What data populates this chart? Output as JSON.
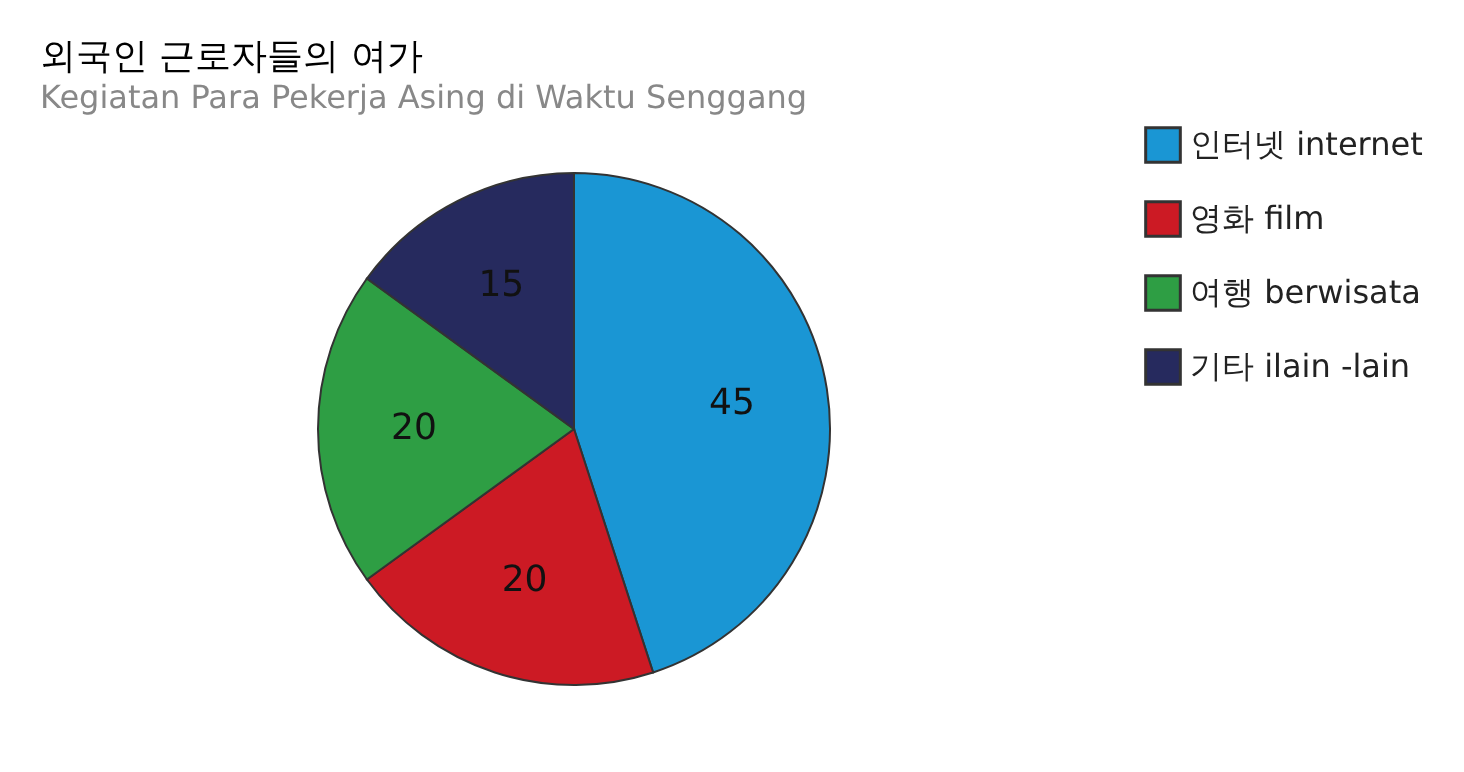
{
  "chart_data": {
    "type": "pie",
    "title": "외국인 근로자들의 여가",
    "subtitle": "Kegiatan Para Pekerja Asing di Waktu Senggang",
    "categories": [
      "인터넷 internet",
      "영화 film",
      "여행 berwisata",
      "기타 ilain -lain"
    ],
    "values": [
      45,
      20,
      20,
      15
    ],
    "colors": [
      "#1a96d4",
      "#cc1a24",
      "#2e9e44",
      "#262a5e"
    ],
    "data_labels": true,
    "legend": "right"
  }
}
